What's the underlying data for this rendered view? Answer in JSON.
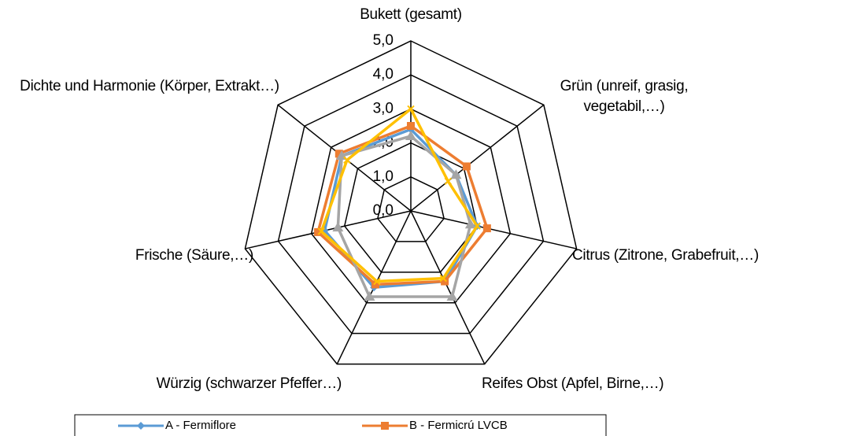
{
  "chart_data": {
    "type": "radar",
    "categories": [
      "Bukett (gesamt)",
      "Grün (unreif, grasig, vegetabil,…)",
      "Citrus (Zitrone, Grabefruit,…)",
      "Reifes Obst (Apfel, Birne,…)",
      "Würzig (schwarzer Pfeffer…)",
      "Frische (Säure,…)",
      "Dichte und Harmonie (Körper, Extrakt…)"
    ],
    "series": [
      {
        "name": "A - Fermiflore",
        "color": "#5b9bd5",
        "marker": "diamond",
        "values": [
          2.4,
          1.7,
          2.0,
          2.3,
          2.5,
          2.6,
          2.6
        ]
      },
      {
        "name": "B - Fermicrú LVCB",
        "color": "#ed7d31",
        "marker": "square",
        "values": [
          2.5,
          2.1,
          2.3,
          2.3,
          2.4,
          2.8,
          2.7
        ]
      },
      {
        "color": "#a5a5a5",
        "marker": "triangle",
        "values": [
          2.2,
          1.7,
          1.8,
          2.8,
          2.8,
          2.2,
          2.6
        ]
      },
      {
        "color": "#ffc000",
        "marker": "x",
        "values": [
          3.0,
          1.4,
          2.0,
          2.2,
          2.3,
          2.7,
          2.4
        ]
      }
    ],
    "ylim": [
      0,
      5
    ],
    "yticks": [
      {
        "value": 0,
        "label": "0,0"
      },
      {
        "value": 1,
        "label": "1,0"
      },
      {
        "value": 2,
        "label": "2,0"
      },
      {
        "value": 3,
        "label": "3,0"
      },
      {
        "value": 4,
        "label": "4,0"
      },
      {
        "value": 5,
        "label": "5,0"
      }
    ],
    "grid": true
  }
}
